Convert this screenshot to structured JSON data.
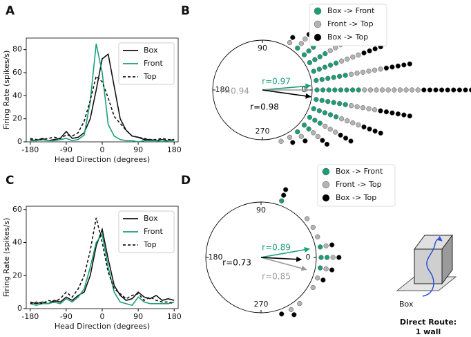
{
  "chart_data": [
    {
      "type": "line",
      "panel": "A",
      "xlabel": "Head Direction (degrees)",
      "ylabel": "Firing Rate (spikes/s)",
      "x": [
        -180,
        -165,
        -150,
        -135,
        -120,
        -105,
        -90,
        -75,
        -60,
        -45,
        -30,
        -15,
        0,
        15,
        30,
        45,
        60,
        75,
        90,
        105,
        120,
        135,
        150,
        165,
        180
      ],
      "xlim": [
        -190,
        190
      ],
      "xticks": [
        -180,
        -90,
        0,
        90,
        180
      ],
      "ylim": [
        0,
        90
      ],
      "yticks": [
        0,
        20,
        40,
        60,
        80
      ],
      "legend": "upper right",
      "series": [
        {
          "name": "Box",
          "color": "#111111",
          "dash": false,
          "values": [
            2,
            1,
            3,
            1,
            2,
            3,
            9,
            3,
            4,
            8,
            20,
            45,
            72,
            76,
            48,
            20,
            10,
            5,
            4,
            2,
            2,
            1,
            2,
            1,
            2
          ]
        },
        {
          "name": "Front",
          "color": "#1a9e77",
          "dash": false,
          "values": [
            1,
            1,
            2,
            1,
            1,
            2,
            3,
            1,
            2,
            6,
            35,
            85,
            60,
            15,
            5,
            2,
            1,
            1,
            0,
            1,
            1,
            1,
            0,
            1,
            1
          ]
        },
        {
          "name": "Top",
          "color": "#111111",
          "dash": true,
          "values": [
            3,
            2,
            2,
            3,
            4,
            3,
            6,
            5,
            8,
            18,
            36,
            57,
            52,
            38,
            22,
            16,
            10,
            5,
            4,
            3,
            2,
            2,
            3,
            2,
            2
          ]
        }
      ]
    },
    {
      "type": "polar_dots",
      "panel": "B",
      "angle_ticks": [
        90,
        -180,
        270,
        0
      ],
      "legend": "upper right",
      "angles": [
        60,
        50,
        40,
        30,
        20,
        10,
        0,
        -10,
        -20,
        -30,
        -40,
        -50,
        -60,
        -70
      ],
      "series": [
        {
          "name": "Box -> Front",
          "color": "#1a9e77",
          "counts": [
            0,
            1,
            3,
            4,
            5,
            6,
            8,
            6,
            5,
            3,
            2,
            1,
            0,
            0
          ],
          "r": 0.97,
          "r_label": "r=0.97",
          "angle": 5
        },
        {
          "name": "Front -> Top",
          "color": "#b3b3b3",
          "counts": [
            1,
            2,
            2,
            3,
            4,
            6,
            10,
            5,
            4,
            3,
            2,
            1,
            1,
            1
          ],
          "r": 0.94,
          "r_label": "r=0.94",
          "angle": 0
        },
        {
          "name": "Box -> Top",
          "color": "#000000",
          "counts": [
            1,
            2,
            2,
            3,
            4,
            5,
            9,
            6,
            4,
            3,
            2,
            1,
            1,
            0
          ],
          "r": 0.98,
          "r_label": "r=0.98",
          "angle": -8
        }
      ]
    },
    {
      "type": "line",
      "panel": "C",
      "xlabel": "Head Direction (degrees)",
      "ylabel": "Firing Rate (spikes/s)",
      "x": [
        -180,
        -165,
        -150,
        -135,
        -120,
        -105,
        -90,
        -75,
        -60,
        -45,
        -30,
        -15,
        0,
        15,
        30,
        45,
        60,
        75,
        90,
        105,
        120,
        135,
        150,
        165,
        180
      ],
      "xlim": [
        -190,
        190
      ],
      "xticks": [
        -180,
        -90,
        0,
        90,
        180
      ],
      "ylim": [
        0,
        62
      ],
      "yticks": [
        0,
        20,
        40,
        60
      ],
      "legend": "upper right",
      "series": [
        {
          "name": "Box",
          "color": "#111111",
          "dash": false,
          "values": [
            4,
            3,
            4,
            3,
            5,
            4,
            7,
            5,
            8,
            10,
            20,
            38,
            48,
            30,
            14,
            8,
            5,
            6,
            10,
            7,
            6,
            8,
            5,
            6,
            5
          ]
        },
        {
          "name": "Front",
          "color": "#1a9e77",
          "dash": false,
          "values": [
            3,
            2,
            3,
            3,
            4,
            3,
            6,
            4,
            7,
            12,
            25,
            40,
            45,
            25,
            10,
            4,
            3,
            2,
            7,
            4,
            3,
            3,
            3,
            3,
            4
          ]
        },
        {
          "name": "Top",
          "color": "#111111",
          "dash": true,
          "values": [
            3,
            4,
            3,
            5,
            4,
            6,
            10,
            7,
            12,
            20,
            35,
            55,
            40,
            22,
            12,
            9,
            6,
            8,
            9,
            5,
            7,
            5,
            4,
            4,
            3
          ]
        }
      ]
    },
    {
      "type": "polar_dots",
      "panel": "D",
      "angle_ticks": [
        90,
        -180,
        270,
        0
      ],
      "legend": "upper right",
      "angles": [
        70,
        40,
        30,
        20,
        10,
        0,
        -10,
        -20,
        -30,
        -50,
        -60,
        -70
      ],
      "series": [
        {
          "name": "Box -> Front",
          "color": "#1a9e77",
          "counts": [
            1,
            0,
            0,
            0,
            1,
            2,
            1,
            0,
            0,
            0,
            0,
            0
          ],
          "r": 0.89,
          "r_label": "r=0.89",
          "angle": 10
        },
        {
          "name": "Front -> Top",
          "color": "#b3b3b3",
          "counts": [
            0,
            1,
            1,
            1,
            1,
            1,
            1,
            1,
            1,
            1,
            1,
            0
          ],
          "r": 0.85,
          "r_label": "r=0.85",
          "angle": -15
        },
        {
          "name": "Box -> Top",
          "color": "#000000",
          "counts": [
            2,
            0,
            0,
            0,
            1,
            1,
            1,
            1,
            0,
            0,
            1,
            1
          ],
          "r": 0.73,
          "r_label": "r=0.73",
          "angle": -3
        }
      ]
    }
  ],
  "inset": {
    "label": "Box",
    "caption": [
      "Direct Route:",
      "1 wall"
    ]
  }
}
